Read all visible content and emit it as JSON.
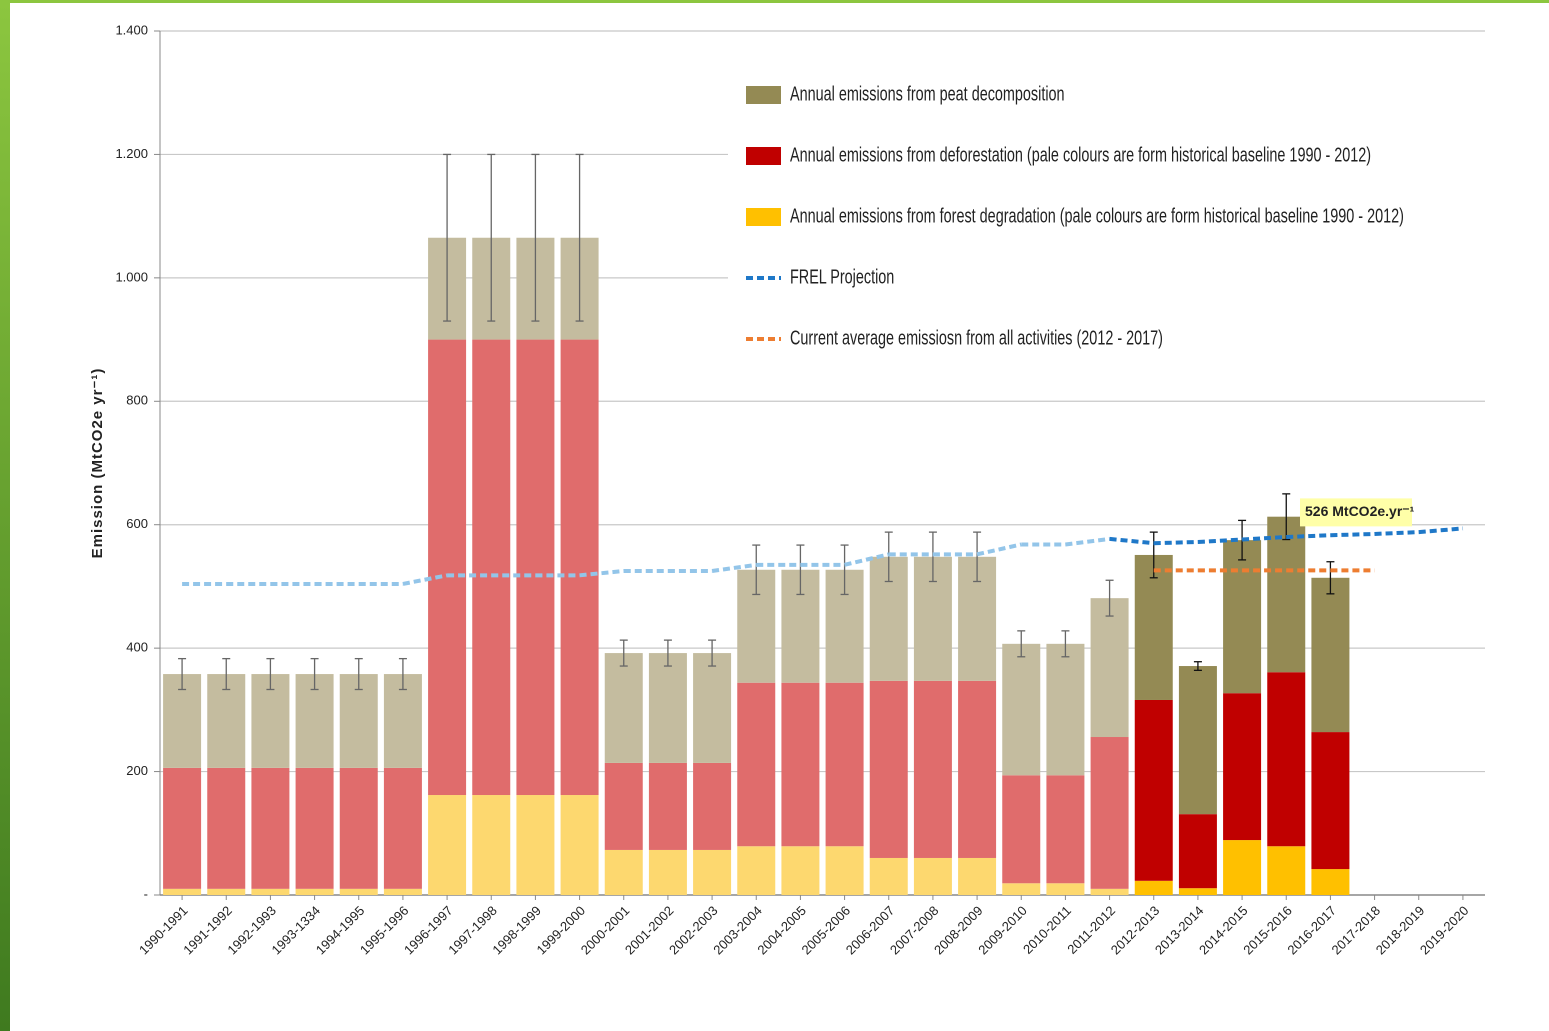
{
  "chart_data": {
    "type": "bar",
    "stacked": true,
    "ylabel": "Emission (MtCO2e yr⁻¹)",
    "categories": [
      "1990-1991",
      "1991-1992",
      "1992-1993",
      "1993-1334",
      "1994-1995",
      "1995-1996",
      "1996-1997",
      "1997-1998",
      "1998-1999",
      "1999-2000",
      "2000-2001",
      "2001-2002",
      "2002-2003",
      "2003-2004",
      "2004-2005",
      "2005-2006",
      "2006-2007",
      "2007-2008",
      "2008-2009",
      "2009-2010",
      "2010-2011",
      "2011-2012",
      "2012-2013",
      "2013-2014",
      "2014-2015",
      "2015-2016",
      "2016-2017",
      "2017-2018",
      "2018-2019",
      "2019-2020"
    ],
    "ylim": [
      0,
      1400
    ],
    "yticks": [
      {
        "value": 0,
        "label": "-"
      },
      200,
      400,
      600,
      800,
      {
        "value": 1000,
        "label": "1.000"
      },
      {
        "value": 1200,
        "label": "1.200"
      },
      {
        "value": 1400,
        "label": "1.400"
      }
    ],
    "grid": true,
    "series": [
      {
        "name": "Annual emissions from peat decomposition",
        "values": [
          152,
          152,
          152,
          152,
          152,
          152,
          165,
          165,
          165,
          165,
          178,
          178,
          178,
          183,
          183,
          183,
          201,
          201,
          201,
          213,
          213,
          225,
          235,
          240,
          248,
          252,
          250,
          null,
          null,
          null
        ],
        "errors": [
          25,
          25,
          25,
          25,
          25,
          25,
          135,
          135,
          135,
          135,
          21,
          21,
          21,
          40,
          40,
          40,
          40,
          40,
          40,
          21,
          21,
          29,
          37,
          7,
          32,
          37,
          26,
          null,
          null,
          null
        ],
        "colors": [
          "#c4bc9f",
          "#c4bc9f",
          "#c4bc9f",
          "#c4bc9f",
          "#c4bc9f",
          "#c4bc9f",
          "#c4bc9f",
          "#c4bc9f",
          "#c4bc9f",
          "#c4bc9f",
          "#c4bc9f",
          "#c4bc9f",
          "#c4bc9f",
          "#c4bc9f",
          "#c4bc9f",
          "#c4bc9f",
          "#c4bc9f",
          "#c4bc9f",
          "#c4bc9f",
          "#c4bc9f",
          "#c4bc9f",
          "#c4bc9f",
          "#948a54",
          "#948a54",
          "#948a54",
          "#948a54",
          "#948a54",
          "#948a54",
          "#948a54",
          "#948a54"
        ]
      },
      {
        "name": "Annual emissions from deforestation (pale colours are form historical baseline 1990 - 2012)",
        "values": [
          196,
          196,
          196,
          196,
          196,
          196,
          738,
          738,
          738,
          738,
          141,
          141,
          141,
          265,
          265,
          265,
          287,
          287,
          287,
          175,
          175,
          246,
          293,
          120,
          238,
          282,
          222,
          null,
          null,
          null
        ],
        "colors": [
          "#e06c6c",
          "#e06c6c",
          "#e06c6c",
          "#e06c6c",
          "#e06c6c",
          "#e06c6c",
          "#e06c6c",
          "#e06c6c",
          "#e06c6c",
          "#e06c6c",
          "#e06c6c",
          "#e06c6c",
          "#e06c6c",
          "#e06c6c",
          "#e06c6c",
          "#e06c6c",
          "#e06c6c",
          "#e06c6c",
          "#e06c6c",
          "#e06c6c",
          "#e06c6c",
          "#e06c6c",
          "#c00000",
          "#c00000",
          "#c00000",
          "#c00000",
          "#c00000",
          "#c00000",
          "#c00000",
          "#c00000"
        ]
      },
      {
        "name": "Annual emissions from forest degradation (pale colours are form historical baseline 1990 - 2012)",
        "values": [
          10,
          10,
          10,
          10,
          10,
          10,
          162,
          162,
          162,
          162,
          73,
          73,
          73,
          79,
          79,
          79,
          60,
          60,
          60,
          19,
          19,
          10,
          23,
          11,
          89,
          79,
          42,
          null,
          null,
          null
        ],
        "colors": [
          "#fdd86f",
          "#fdd86f",
          "#fdd86f",
          "#fdd86f",
          "#fdd86f",
          "#fdd86f",
          "#fdd86f",
          "#fdd86f",
          "#fdd86f",
          "#fdd86f",
          "#fdd86f",
          "#fdd86f",
          "#fdd86f",
          "#fdd86f",
          "#fdd86f",
          "#fdd86f",
          "#fdd86f",
          "#fdd86f",
          "#fdd86f",
          "#fdd86f",
          "#fdd86f",
          "#fdd86f",
          "#ffc000",
          "#ffc000",
          "#ffc000",
          "#ffc000",
          "#ffc000",
          "#ffc000",
          "#ffc000",
          "#ffc000"
        ]
      }
    ],
    "lines": [
      {
        "name": "FREL Projection",
        "values": [
          504,
          504,
          504,
          504,
          504,
          504,
          518,
          518,
          518,
          518,
          525,
          525,
          525,
          535,
          535,
          535,
          552,
          552,
          552,
          568,
          568,
          577,
          570,
          572,
          576,
          580,
          583,
          585,
          588,
          594
        ],
        "colors": [
          "#93c5e9",
          "#93c5e9",
          "#93c5e9",
          "#93c5e9",
          "#93c5e9",
          "#93c5e9",
          "#93c5e9",
          "#93c5e9",
          "#93c5e9",
          "#93c5e9",
          "#93c5e9",
          "#93c5e9",
          "#93c5e9",
          "#93c5e9",
          "#93c5e9",
          "#93c5e9",
          "#93c5e9",
          "#93c5e9",
          "#93c5e9",
          "#93c5e9",
          "#93c5e9",
          "#93c5e9",
          "#1f78c8",
          "#1f78c8",
          "#1f78c8",
          "#1f78c8",
          "#1f78c8",
          "#1f78c8",
          "#1f78c8",
          "#1f78c8"
        ]
      },
      {
        "name": "Current average emissiosn from all activities (2012 - 2017)",
        "values": [
          null,
          null,
          null,
          null,
          null,
          null,
          null,
          null,
          null,
          null,
          null,
          null,
          null,
          null,
          null,
          null,
          null,
          null,
          null,
          null,
          null,
          null,
          526,
          526,
          526,
          526,
          526,
          526,
          null,
          null
        ],
        "colors": [
          "#ed7d31",
          "#ed7d31",
          "#ed7d31",
          "#ed7d31",
          "#ed7d31",
          "#ed7d31",
          "#ed7d31",
          "#ed7d31",
          "#ed7d31",
          "#ed7d31",
          "#ed7d31",
          "#ed7d31",
          "#ed7d31",
          "#ed7d31",
          "#ed7d31",
          "#ed7d31",
          "#ed7d31",
          "#ed7d31",
          "#ed7d31",
          "#ed7d31",
          "#ed7d31",
          "#ed7d31",
          "#ed7d31",
          "#ed7d31",
          "#ed7d31",
          "#ed7d31",
          "#ed7d31",
          "#ed7d31",
          "#ed7d31",
          "#ed7d31"
        ]
      }
    ],
    "annotation": {
      "text": "526 MtCO2e.yr⁻¹",
      "value": 526
    }
  }
}
